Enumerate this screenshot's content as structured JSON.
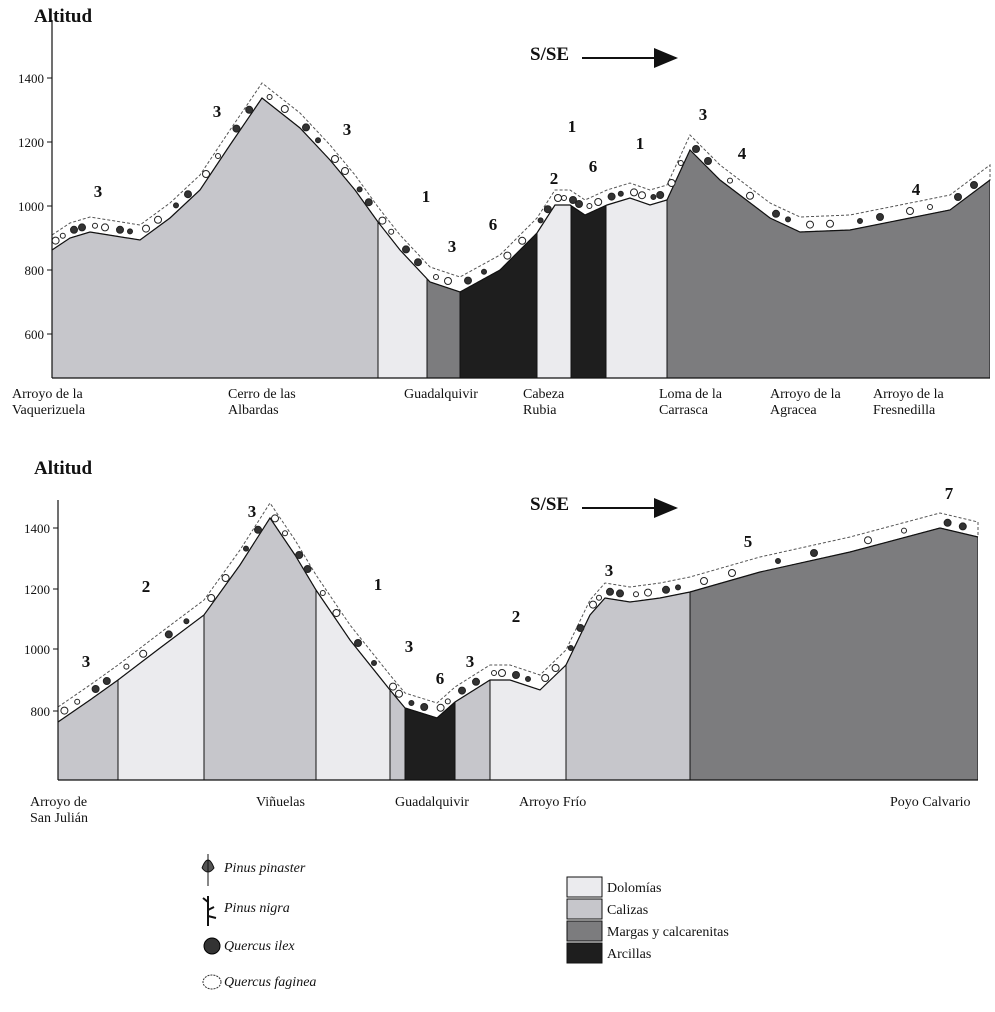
{
  "profiles": [
    {
      "axis_title": "Altitud",
      "direction": "S/SE",
      "yticks": [
        "1400",
        "1200",
        "1000",
        "800",
        "600"
      ],
      "places": [
        [
          "Arroyo de la",
          "Vaquerizuela"
        ],
        [
          "Cerro de las",
          "Albardas"
        ],
        [
          "Guadalquivir"
        ],
        [
          "Cabeza",
          "Rubia"
        ],
        [
          "Loma de la",
          "Carrasca"
        ],
        [
          "Arroyo de la",
          "Agracea"
        ],
        [
          "Arroyo de la",
          "Fresnedilla"
        ]
      ],
      "labels": [
        "3",
        "3",
        "3",
        "1",
        "3",
        "6",
        "2",
        "1",
        "6",
        "1",
        "3",
        "4",
        "4"
      ]
    },
    {
      "axis_title": "Altitud",
      "direction": "S/SE",
      "yticks": [
        "1400",
        "1200",
        "1000",
        "800"
      ],
      "places": [
        [
          "Arroyo de",
          "San Julián"
        ],
        [
          "Viñuelas"
        ],
        [
          "Guadalquivir"
        ],
        [
          "Arroyo Frío"
        ],
        [
          "Poyo Calvario"
        ]
      ],
      "labels": [
        "3",
        "2",
        "3",
        "1",
        "3",
        "6",
        "3",
        "2",
        "3",
        "5",
        "7"
      ]
    }
  ],
  "legend": {
    "vegetation": [
      "Pinus pinaster",
      "Pinus nigra",
      "Quercus ilex",
      "Quercus faginea"
    ],
    "geology": [
      {
        "name": "Dolomías",
        "color": "#ebebee"
      },
      {
        "name": "Calizas",
        "color": "#c6c6cb"
      },
      {
        "name": "Margas y calcarenitas",
        "color": "#7c7c7e"
      },
      {
        "name": "Arcillas",
        "color": "#1e1e1e"
      }
    ]
  }
}
